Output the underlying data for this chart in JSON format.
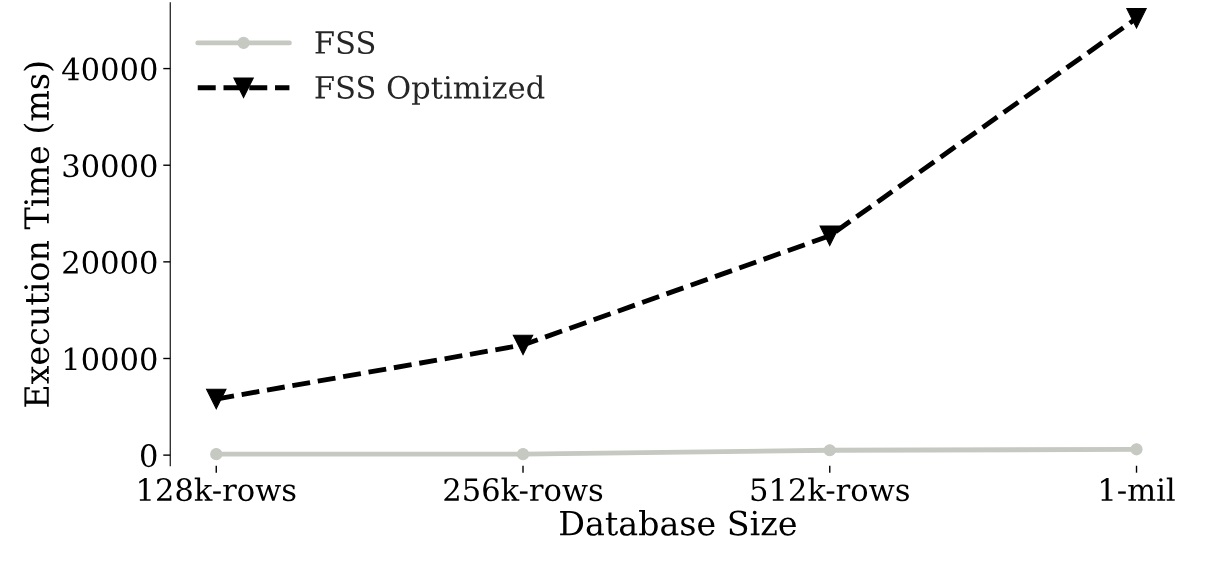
{
  "chart_data": {
    "type": "line",
    "xlabel": "Database Size",
    "ylabel": "Execution Time (ms)",
    "categories": [
      "128k-rows",
      "256k-rows",
      "512k-rows",
      "1-mil"
    ],
    "series": [
      {
        "name": "FSS",
        "color": "#c5c9c1",
        "values": [
          100,
          100,
          500,
          600
        ],
        "marker": "circle",
        "line_style": "solid"
      },
      {
        "name": "FSS Optimized",
        "color": "#000000",
        "values": [
          5800,
          11400,
          22700,
          45200
        ],
        "marker": "triangle",
        "line_style": "dashed"
      }
    ],
    "ylim": [
      -1100,
      46800
    ],
    "yticks": [
      0,
      10000,
      20000,
      30000,
      40000
    ],
    "grid": false,
    "legend": "top left"
  }
}
